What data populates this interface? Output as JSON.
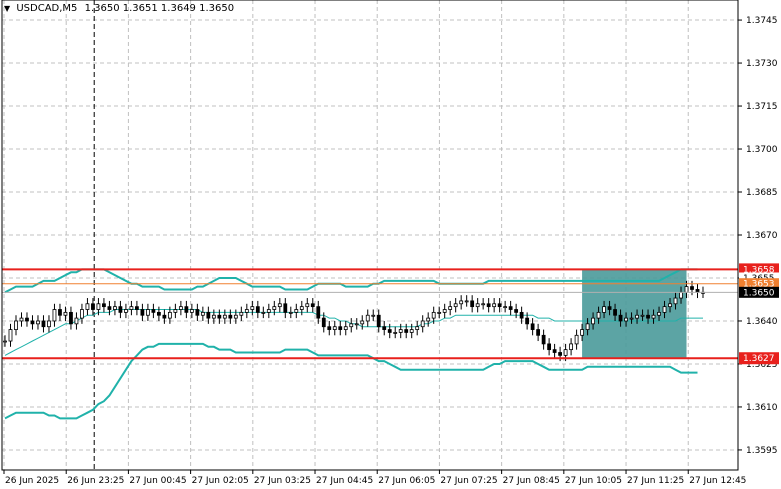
{
  "header": {
    "symbol_timeframe": "USDCAD,M5",
    "ohlc": "1.3650 1.3651 1.3649 1.3650"
  },
  "chart_data": {
    "type": "candlestick",
    "symbol": "USDCAD",
    "timeframe": "M5",
    "ylim": [
      1.3588,
      1.3752
    ],
    "y_ticks": [
      "1.3745",
      "1.3730",
      "1.3715",
      "1.3700",
      "1.3685",
      "1.3670",
      "1.3655",
      "1.3640",
      "1.3625",
      "1.3610",
      "1.3595"
    ],
    "x_ticks": [
      "26 Jun 2025",
      "26 Jun 23:25",
      "27 Jun 00:45",
      "27 Jun 02:05",
      "27 Jun 03:25",
      "27 Jun 04:45",
      "27 Jun 06:05",
      "27 Jun 07:25",
      "27 Jun 08:45",
      "27 Jun 10:05",
      "27 Jun 11:25",
      "27 Jun 12:45"
    ],
    "price_levels": [
      {
        "label": "1.3658",
        "value": 1.3658,
        "color": "#e8201c"
      },
      {
        "label": "1.3627",
        "value": 1.3627,
        "color": "#e8201c"
      }
    ],
    "price_tags": [
      {
        "label": "1.3655",
        "value": 1.3655,
        "color": "#ffffff",
        "text_color": "#000000"
      },
      {
        "label": "1.3653",
        "value": 1.3653,
        "color": "#f08030",
        "text_color": "#ffffff"
      },
      {
        "label": "1.3650",
        "value": 1.365,
        "color": "#000000",
        "text_color": "#ffffff"
      }
    ],
    "candles_close": [
      1.3633,
      1.3637,
      1.364,
      1.3641,
      1.364,
      1.3639,
      1.364,
      1.3638,
      1.364,
      1.3644,
      1.3642,
      1.3643,
      1.3639,
      1.3641,
      1.3644,
      1.3646,
      1.3644,
      1.3646,
      1.3645,
      1.3644,
      1.3645,
      1.3643,
      1.3644,
      1.3645,
      1.3644,
      1.3642,
      1.3644,
      1.3643,
      1.3642,
      1.3641,
      1.3643,
      1.3644,
      1.3645,
      1.3643,
      1.3644,
      1.3642,
      1.3643,
      1.3641,
      1.3642,
      1.3641,
      1.3642,
      1.3641,
      1.3642,
      1.3643,
      1.3644,
      1.3645,
      1.3643,
      1.3643,
      1.3644,
      1.3645,
      1.3646,
      1.3643,
      1.3643,
      1.3644,
      1.3645,
      1.3646,
      1.3645,
      1.3641,
      1.3638,
      1.3637,
      1.3638,
      1.3637,
      1.3638,
      1.3639,
      1.3639,
      1.364,
      1.3642,
      1.3642,
      1.3638,
      1.3637,
      1.3636,
      1.3636,
      1.3637,
      1.3636,
      1.3637,
      1.3638,
      1.364,
      1.3641,
      1.3643,
      1.3643,
      1.3644,
      1.3645,
      1.3646,
      1.3647,
      1.3647,
      1.3645,
      1.3646,
      1.3646,
      1.3645,
      1.3646,
      1.3645,
      1.3645,
      1.3644,
      1.3643,
      1.3641,
      1.3639,
      1.3637,
      1.3635,
      1.3632,
      1.363,
      1.3629,
      1.3628,
      1.363,
      1.3632,
      1.3635,
      1.3637,
      1.3639,
      1.3641,
      1.3643,
      1.3645,
      1.3644,
      1.3642,
      1.364,
      1.3641,
      1.3641,
      1.3642,
      1.3642,
      1.3641,
      1.3642,
      1.3643,
      1.3645,
      1.3646,
      1.3648,
      1.365,
      1.3652,
      1.3651,
      1.365,
      1.365
    ],
    "bb_upper": [
      1.365,
      1.3651,
      1.3652,
      1.3652,
      1.3652,
      1.3652,
      1.3653,
      1.3654,
      1.3654,
      1.3654,
      1.3655,
      1.3656,
      1.3657,
      1.3657,
      1.3658,
      1.3658,
      1.3658,
      1.3658,
      1.3658,
      1.3657,
      1.3656,
      1.3655,
      1.3654,
      1.3653,
      1.3653,
      1.3652,
      1.3652,
      1.3652,
      1.3652,
      1.3651,
      1.3651,
      1.3651,
      1.3651,
      1.3651,
      1.3651,
      1.3652,
      1.3652,
      1.3653,
      1.3654,
      1.3655,
      1.3655,
      1.3655,
      1.3655,
      1.3654,
      1.3653,
      1.3652,
      1.3652,
      1.3652,
      1.3652,
      1.3652,
      1.3652,
      1.3651,
      1.3651,
      1.3651,
      1.3651,
      1.3651,
      1.3652,
      1.3653,
      1.3653,
      1.3653,
      1.3653,
      1.3653,
      1.3652,
      1.3652,
      1.3652,
      1.3652,
      1.3652,
      1.3653,
      1.3653,
      1.3654,
      1.3654,
      1.3654,
      1.3654,
      1.3654,
      1.3654,
      1.3654,
      1.3654,
      1.3654,
      1.3654,
      1.3653,
      1.3653,
      1.3653,
      1.3653,
      1.3653,
      1.3653,
      1.3653,
      1.3653,
      1.3653,
      1.3654,
      1.3654,
      1.3654,
      1.3654,
      1.3654,
      1.3654,
      1.3654,
      1.3654,
      1.3654,
      1.3654,
      1.3654,
      1.3654,
      1.3654,
      1.3654,
      1.3654,
      1.3654,
      1.3654,
      1.3654,
      1.3654,
      1.3654,
      1.3654,
      1.3654,
      1.3654,
      1.3654,
      1.3654,
      1.3654,
      1.3654,
      1.3654,
      1.3654,
      1.3654,
      1.3654,
      1.3654,
      1.3655,
      1.3656,
      1.3657,
      1.3658,
      1.3658,
      1.3658,
      1.3658
    ],
    "bb_middle": [
      1.3628,
      1.3629,
      1.363,
      1.3631,
      1.3632,
      1.3633,
      1.3634,
      1.3635,
      1.3636,
      1.3637,
      1.3638,
      1.3639,
      1.3639,
      1.364,
      1.3641,
      1.3642,
      1.3642,
      1.3643,
      1.3643,
      1.3643,
      1.3644,
      1.3644,
      1.3644,
      1.3644,
      1.3644,
      1.3644,
      1.3644,
      1.3644,
      1.3644,
      1.3644,
      1.3644,
      1.3644,
      1.3644,
      1.3644,
      1.3644,
      1.3644,
      1.3643,
      1.3643,
      1.3643,
      1.3643,
      1.3643,
      1.3643,
      1.3643,
      1.3643,
      1.3643,
      1.3643,
      1.3643,
      1.3643,
      1.3643,
      1.3643,
      1.3643,
      1.3643,
      1.3643,
      1.3643,
      1.3643,
      1.3643,
      1.3643,
      1.3642,
      1.3642,
      1.3641,
      1.3641,
      1.364,
      1.364,
      1.3639,
      1.3639,
      1.3638,
      1.3638,
      1.3638,
      1.3638,
      1.3638,
      1.3638,
      1.3638,
      1.3638,
      1.3638,
      1.3638,
      1.3638,
      1.3639,
      1.3639,
      1.364,
      1.364,
      1.3641,
      1.3641,
      1.3642,
      1.3642,
      1.3642,
      1.3642,
      1.3642,
      1.3642,
      1.3642,
      1.3642,
      1.3642,
      1.3642,
      1.3642,
      1.3642,
      1.3642,
      1.3642,
      1.3642,
      1.3641,
      1.3641,
      1.3641,
      1.364,
      1.364,
      1.364,
      1.364,
      1.364,
      1.364,
      1.364,
      1.364,
      1.364,
      1.364,
      1.364,
      1.364,
      1.364,
      1.364,
      1.364,
      1.364,
      1.364,
      1.364,
      1.364,
      1.364,
      1.364,
      1.364,
      1.364,
      1.3641,
      1.3641,
      1.3641,
      1.3641,
      1.3641
    ],
    "bb_lower": [
      1.3606,
      1.3607,
      1.3608,
      1.3608,
      1.3608,
      1.3608,
      1.3608,
      1.3608,
      1.3607,
      1.3607,
      1.3606,
      1.3606,
      1.3606,
      1.3606,
      1.3607,
      1.3608,
      1.3609,
      1.3611,
      1.3612,
      1.3614,
      1.3617,
      1.362,
      1.3623,
      1.3626,
      1.3628,
      1.363,
      1.3631,
      1.3631,
      1.3632,
      1.3632,
      1.3632,
      1.3632,
      1.3632,
      1.3632,
      1.3632,
      1.3632,
      1.3632,
      1.3631,
      1.3631,
      1.363,
      1.363,
      1.363,
      1.3629,
      1.3629,
      1.3629,
      1.3629,
      1.3629,
      1.3629,
      1.3629,
      1.3629,
      1.3629,
      1.363,
      1.363,
      1.363,
      1.363,
      1.363,
      1.3629,
      1.3628,
      1.3628,
      1.3628,
      1.3628,
      1.3628,
      1.3628,
      1.3628,
      1.3628,
      1.3628,
      1.3628,
      1.3627,
      1.3626,
      1.3626,
      1.3625,
      1.3624,
      1.3623,
      1.3623,
      1.3623,
      1.3623,
      1.3623,
      1.3623,
      1.3623,
      1.3623,
      1.3623,
      1.3623,
      1.3623,
      1.3623,
      1.3623,
      1.3623,
      1.3623,
      1.3623,
      1.3624,
      1.3625,
      1.3625,
      1.3626,
      1.3626,
      1.3626,
      1.3626,
      1.3626,
      1.3626,
      1.3625,
      1.3624,
      1.3623,
      1.3623,
      1.3623,
      1.3623,
      1.3623,
      1.3623,
      1.3623,
      1.3624,
      1.3624,
      1.3624,
      1.3624,
      1.3624,
      1.3624,
      1.3624,
      1.3624,
      1.3624,
      1.3624,
      1.3624,
      1.3624,
      1.3624,
      1.3624,
      1.3624,
      1.3624,
      1.3623,
      1.3622,
      1.3622,
      1.3622,
      1.3622
    ],
    "highlight_zone": {
      "y_top": 1.3658,
      "y_bottom": 1.3627,
      "color": "#4a9a9a"
    },
    "colors": {
      "candles": "#000000",
      "bands": "#20b2aa",
      "levels": "#e8201c",
      "grid": "#c0c0c0",
      "orange_line": "#f08030"
    }
  }
}
